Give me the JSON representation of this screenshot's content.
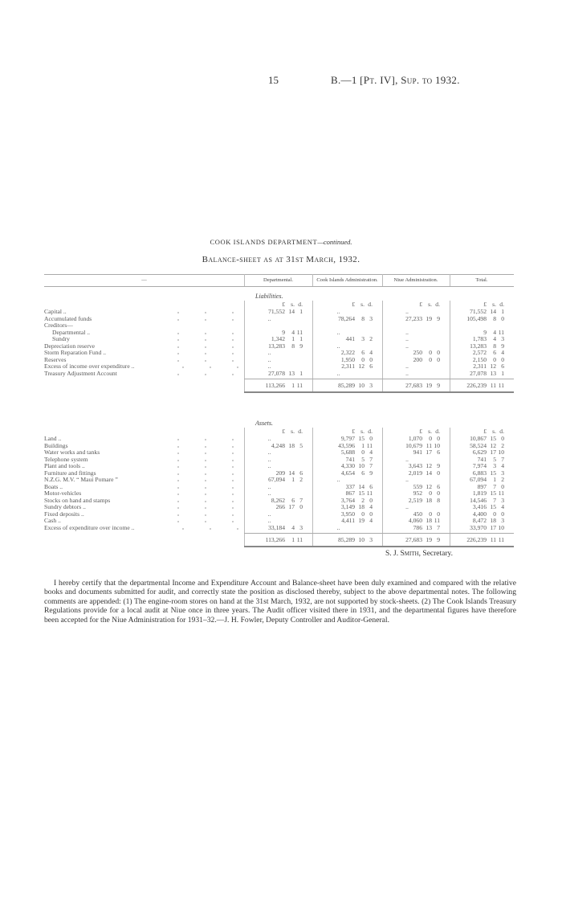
{
  "header": {
    "page_number": "15",
    "reference": "B.—1 [Pt. IV], Sup. to 1932."
  },
  "title": {
    "department": "COOK ISLANDS DEPARTMENT",
    "continued": "—continued.",
    "subtitle": "Balance-sheet as at 31st March, 1932."
  },
  "columns": [
    "—",
    "Departmental.",
    "Cook Islands Administration.",
    "Niue Administration.",
    "Total."
  ],
  "currency_units": [
    "£",
    "s.",
    "d."
  ],
  "liabilities": {
    "heading": "Liabilities.",
    "rows": [
      {
        "label": "Capital ..",
        "values": [
          [
            "71,552",
            "14",
            "1"
          ],
          "..",
          "..",
          [
            "71,552",
            "14",
            "1"
          ]
        ]
      },
      {
        "label": "Accumulated funds",
        "values": [
          "..",
          [
            "78,264",
            "8",
            "3"
          ],
          [
            "27,233",
            "19",
            "9"
          ],
          [
            "105,498",
            "8",
            "0"
          ]
        ]
      },
      {
        "label": "Creditors—",
        "values": []
      },
      {
        "label": "Departmental ..",
        "indent": true,
        "values": [
          [
            "9",
            "4",
            "11"
          ],
          "..",
          "..",
          [
            "9",
            "4",
            "11"
          ]
        ]
      },
      {
        "label": "Sundry",
        "indent": true,
        "values": [
          [
            "1,342",
            "1",
            "1"
          ],
          [
            "441",
            "3",
            "2"
          ],
          "..",
          [
            "1,783",
            "4",
            "3"
          ]
        ]
      },
      {
        "label": "Depreciation reserve",
        "values": [
          [
            "13,283",
            "8",
            "9"
          ],
          "..",
          "..",
          [
            "13,283",
            "8",
            "9"
          ]
        ]
      },
      {
        "label": "Storm Reparation Fund ..",
        "values": [
          "..",
          [
            "2,322",
            "6",
            "4"
          ],
          [
            "250",
            "0",
            "0"
          ],
          [
            "2,572",
            "6",
            "4"
          ]
        ]
      },
      {
        "label": "Reserves",
        "values": [
          "..",
          [
            "1,950",
            "0",
            "0"
          ],
          [
            "200",
            "0",
            "0"
          ],
          [
            "2,150",
            "0",
            "0"
          ]
        ]
      },
      {
        "label": "Excess of income over expenditure ..",
        "values": [
          "..",
          [
            "2,311",
            "12",
            "6"
          ],
          "..",
          [
            "2,311",
            "12",
            "6"
          ]
        ]
      },
      {
        "label": "Treasury Adjustment Account",
        "values": [
          [
            "27,078",
            "13",
            "1"
          ],
          "..",
          "..",
          [
            "27,078",
            "13",
            "1"
          ]
        ]
      }
    ],
    "totals": [
      [
        "113,266",
        "1",
        "11"
      ],
      [
        "85,289",
        "10",
        "3"
      ],
      [
        "27,683",
        "19",
        "9"
      ],
      [
        "226,239",
        "11",
        "11"
      ]
    ]
  },
  "assets": {
    "heading": "Assets.",
    "rows": [
      {
        "label": "Land ..",
        "values": [
          "..",
          [
            "9,797",
            "15",
            "0"
          ],
          [
            "1,070",
            "0",
            "0"
          ],
          [
            "10,867",
            "15",
            "0"
          ]
        ]
      },
      {
        "label": "Buildings",
        "values": [
          [
            "4,248",
            "18",
            "5"
          ],
          [
            "43,596",
            "1",
            "11"
          ],
          [
            "10,679",
            "11",
            "10"
          ],
          [
            "58,524",
            "12",
            "2"
          ]
        ]
      },
      {
        "label": "Water works and tanks",
        "values": [
          "..",
          [
            "5,688",
            "0",
            "4"
          ],
          [
            "941",
            "17",
            "6"
          ],
          [
            "6,629",
            "17",
            "10"
          ]
        ]
      },
      {
        "label": "Telephone system",
        "values": [
          "..",
          [
            "741",
            "5",
            "7"
          ],
          "..",
          [
            "741",
            "5",
            "7"
          ]
        ]
      },
      {
        "label": "Plant and tools ..",
        "values": [
          "..",
          [
            "4,330",
            "10",
            "7"
          ],
          [
            "3,643",
            "12",
            "9"
          ],
          [
            "7,974",
            "3",
            "4"
          ]
        ]
      },
      {
        "label": "Furniture and fittings",
        "values": [
          [
            "209",
            "14",
            "6"
          ],
          [
            "4,654",
            "6",
            "9"
          ],
          [
            "2,019",
            "14",
            "0"
          ],
          [
            "6,883",
            "15",
            "3"
          ]
        ]
      },
      {
        "label": "N.Z.G. M.V. “ Maui Pomare ”",
        "values": [
          [
            "67,094",
            "1",
            "2"
          ],
          "..",
          "..",
          [
            "67,094",
            "1",
            "2"
          ]
        ]
      },
      {
        "label": "Boats ..",
        "values": [
          "..",
          [
            "337",
            "14",
            "6"
          ],
          [
            "559",
            "12",
            "6"
          ],
          [
            "897",
            "7",
            "0"
          ]
        ]
      },
      {
        "label": "Motor-vehicles",
        "values": [
          "..",
          [
            "867",
            "15",
            "11"
          ],
          [
            "952",
            "0",
            "0"
          ],
          [
            "1,819",
            "15",
            "11"
          ]
        ]
      },
      {
        "label": "Stocks on hand and stamps",
        "values": [
          [
            "8,262",
            "6",
            "7"
          ],
          [
            "3,764",
            "2",
            "0"
          ],
          [
            "2,519",
            "18",
            "8"
          ],
          [
            "14,546",
            "7",
            "3"
          ]
        ]
      },
      {
        "label": "Sundry debtors ..",
        "values": [
          [
            "266",
            "17",
            "0"
          ],
          [
            "3,149",
            "18",
            "4"
          ],
          "..",
          [
            "3,416",
            "15",
            "4"
          ]
        ]
      },
      {
        "label": "Fixed deposits ..",
        "values": [
          "..",
          [
            "3,950",
            "0",
            "0"
          ],
          [
            "450",
            "0",
            "0"
          ],
          [
            "4,400",
            "0",
            "0"
          ]
        ]
      },
      {
        "label": "Cash ..",
        "values": [
          "..",
          [
            "4,411",
            "19",
            "4"
          ],
          [
            "4,060",
            "18",
            "11"
          ],
          [
            "8,472",
            "18",
            "3"
          ]
        ]
      },
      {
        "label": "Excess of expenditure over income ..",
        "values": [
          [
            "33,184",
            "4",
            "3"
          ],
          "..",
          [
            "786",
            "13",
            "7"
          ],
          [
            "33,970",
            "17",
            "10"
          ]
        ]
      }
    ],
    "totals": [
      [
        "113,266",
        "1",
        "11"
      ],
      [
        "85,289",
        "10",
        "3"
      ],
      [
        "27,683",
        "19",
        "9"
      ],
      [
        "226,239",
        "11",
        "11"
      ]
    ]
  },
  "signature": {
    "name": "S. J. Smith",
    "title": ", Secretary."
  },
  "certificate": "I hereby certify that the departmental Income and Expenditure Account and Balance-sheet have been duly examined and compared with the relative books and documents submitted for audit, and correctly state the position as disclosed thereby, subject to the above departmental notes. The following comments are appended: (1) The engine-room stores on hand at the 31st March, 1932, are not supported by stock-sheets. (2) The Cook Islands Treasury Regulations provide for a local audit at Niue once in three years. The Audit officer visited there in 1931, and the departmental figures have therefore been accepted for the Niue Administration for 1931–32.—J. H. Fowler, Deputy Controller and Auditor-General."
}
